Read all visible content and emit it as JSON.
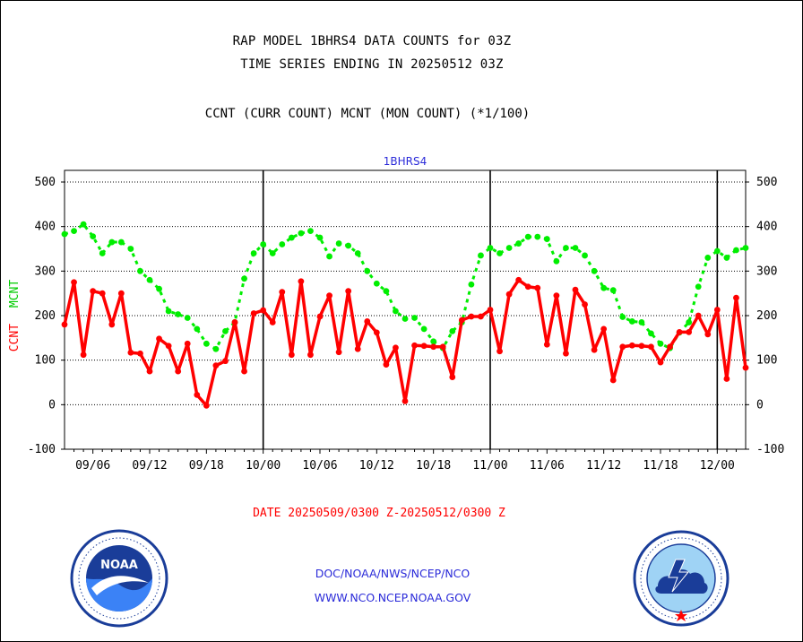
{
  "header": {
    "line1": "RAP MODEL 1BHRS4 DATA COUNTS for 03Z",
    "line2": "TIME SERIES ENDING IN 20250512 03Z",
    "subtitle": "CCNT (CURR COUNT) MCNT (MON COUNT) (*1/100)"
  },
  "chart_data": {
    "type": "line",
    "title": "1BHRS4",
    "xlabel": "",
    "ylabel": "CCNT  MCNT",
    "ylabel_parts": [
      "CCNT",
      "MCNT"
    ],
    "ylim": [
      -100,
      500
    ],
    "yticks": [
      -100,
      0,
      100,
      200,
      300,
      400,
      500
    ],
    "grid": true,
    "x_tick_labels": [
      "09/06",
      "09/12",
      "09/18",
      "10/00",
      "10/06",
      "10/12",
      "10/18",
      "11/00",
      "11/06",
      "11/12",
      "11/18",
      "12/00"
    ],
    "x_tick_positions": [
      3,
      9,
      15,
      21,
      27,
      33,
      39,
      45,
      51,
      57,
      63,
      69
    ],
    "day_boundaries": [
      21,
      45,
      69
    ],
    "x_range": [
      0,
      72
    ],
    "series": [
      {
        "name": "CCNT",
        "color": "#ff0000",
        "values": [
          180,
          275,
          112,
          255,
          250,
          180,
          250,
          117,
          115,
          75,
          148,
          132,
          75,
          137,
          22,
          -2,
          88,
          98,
          185,
          75,
          205,
          212,
          185,
          253,
          112,
          277,
          112,
          198,
          245,
          118,
          255,
          125,
          187,
          162,
          90,
          128,
          8,
          133,
          132,
          130,
          130,
          62,
          190,
          198,
          198,
          213,
          120,
          248,
          280,
          265,
          262,
          135,
          245,
          115,
          258,
          225,
          123,
          170,
          55,
          130,
          133,
          132,
          130,
          95,
          130,
          163,
          163,
          200,
          158,
          213,
          58,
          240,
          83
        ]
      },
      {
        "name": "MCNT",
        "color": "#00ee00",
        "values": [
          383,
          390,
          405,
          378,
          340,
          365,
          365,
          350,
          300,
          280,
          260,
          210,
          203,
          195,
          170,
          137,
          125,
          165,
          185,
          283,
          340,
          360,
          340,
          360,
          375,
          385,
          390,
          375,
          333,
          362,
          357,
          340,
          300,
          272,
          255,
          210,
          193,
          195,
          170,
          142,
          127,
          165,
          185,
          270,
          335,
          352,
          340,
          352,
          362,
          377,
          377,
          372,
          322,
          352,
          352,
          335,
          300,
          262,
          257,
          197,
          187,
          185,
          160,
          137,
          127,
          162,
          185,
          265,
          330,
          345,
          330,
          347,
          352
        ]
      }
    ]
  },
  "footer": {
    "date_range": "DATE 20250509/0300 Z-20250512/0300 Z",
    "link1": "DOC/NOAA/NWS/NCEP/NCO",
    "link2": "WWW.NCO.NCEP.NOAA.GOV"
  },
  "logos": {
    "left": "noaa-logo",
    "right": "nws-logo"
  }
}
